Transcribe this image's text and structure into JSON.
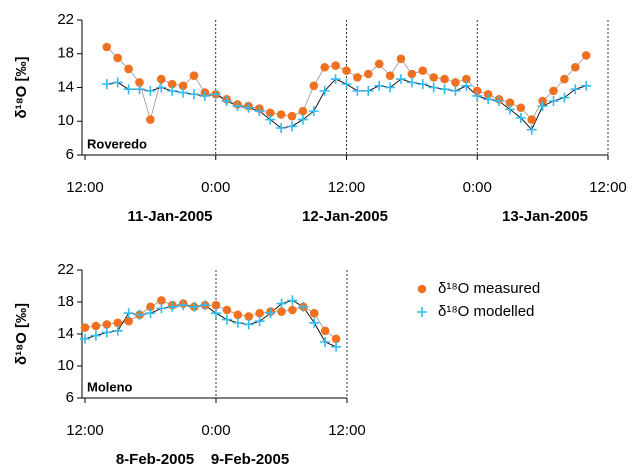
{
  "chart_data": [
    {
      "type": "scatter",
      "label": "Roveredo",
      "y_label": "δ¹⁸O [‰]",
      "date_labels": [
        "11-Jan-2005",
        "12-Jan-2005",
        "13-Jan-2005"
      ],
      "xlim": [
        12,
        60
      ],
      "xticks": [
        {
          "value": 12,
          "label": "12:00"
        },
        {
          "value": 24,
          "label": "0:00"
        },
        {
          "value": 36,
          "label": "12:00"
        },
        {
          "value": 48,
          "label": "0:00"
        },
        {
          "value": 60,
          "label": "12:00"
        }
      ],
      "ylim": [
        6,
        22
      ],
      "yticks": [
        6,
        10,
        14,
        18,
        22
      ],
      "x": [
        14,
        15,
        16,
        17,
        18,
        19,
        20,
        21,
        22,
        23,
        24,
        25,
        26,
        27,
        28,
        29,
        30,
        31,
        32,
        33,
        34,
        35,
        36,
        37,
        38,
        39,
        40,
        41,
        42,
        43,
        44,
        45,
        46,
        47,
        48,
        49,
        50,
        51,
        52,
        53,
        54,
        55,
        56,
        57,
        58
      ],
      "series": [
        {
          "color": "#f07020",
          "values": [
            18.8,
            17.5,
            16.2,
            14.6,
            10.2,
            15.0,
            14.4,
            14.2,
            15.4,
            13.4,
            13.2,
            12.6,
            12.0,
            11.8,
            11.5,
            11.0,
            10.8,
            10.6,
            11.2,
            14.2,
            16.4,
            16.6,
            16.0,
            15.2,
            15.6,
            16.8,
            15.4,
            17.4,
            15.6,
            16.0,
            15.2,
            15.0,
            14.6,
            15.0,
            13.6,
            13.2,
            12.6,
            12.2,
            11.6,
            10.2,
            12.4,
            13.6,
            15.0,
            16.4,
            17.8
          ]
        },
        {
          "color": "#33bbee",
          "values": [
            14.4,
            14.6,
            13.8,
            13.8,
            13.6,
            14.0,
            13.6,
            13.4,
            13.2,
            13.0,
            13.2,
            12.4,
            11.8,
            11.6,
            11.2,
            10.2,
            9.2,
            9.4,
            10.2,
            11.2,
            13.6,
            15.0,
            14.4,
            13.6,
            13.6,
            14.2,
            14.0,
            15.0,
            14.6,
            14.4,
            14.0,
            13.8,
            13.6,
            14.2,
            13.0,
            12.6,
            12.4,
            11.4,
            10.4,
            9.0,
            11.8,
            12.4,
            12.8,
            13.8,
            14.2
          ]
        }
      ]
    },
    {
      "type": "scatter",
      "label": "Moleno",
      "y_label": "δ¹⁸O [‰]",
      "date_labels": [
        "8-Feb-2005",
        "9-Feb-2005"
      ],
      "xlim": [
        12,
        36
      ],
      "xticks": [
        {
          "value": 12,
          "label": "12:00"
        },
        {
          "value": 24,
          "label": "0:00"
        },
        {
          "value": 36,
          "label": "12:00"
        }
      ],
      "ylim": [
        6,
        22
      ],
      "yticks": [
        6,
        10,
        14,
        18,
        22
      ],
      "x": [
        12,
        13,
        14,
        15,
        16,
        17,
        18,
        19,
        20,
        21,
        22,
        23,
        24,
        25,
        26,
        27,
        28,
        29,
        30,
        31,
        32,
        33,
        34,
        35
      ],
      "series": [
        {
          "name": "δ¹⁸O measured",
          "color": "#f07020",
          "values": [
            14.8,
            15.0,
            15.2,
            15.4,
            15.6,
            16.4,
            17.4,
            18.2,
            17.6,
            17.8,
            17.4,
            17.6,
            17.6,
            17.0,
            16.4,
            16.2,
            16.6,
            16.8,
            16.8,
            17.0,
            17.4,
            16.6,
            14.4,
            13.4
          ]
        },
        {
          "name": "δ¹⁸O modelled",
          "color": "#33bbee",
          "values": [
            13.4,
            13.8,
            14.2,
            14.4,
            16.6,
            16.4,
            16.6,
            17.2,
            17.4,
            17.6,
            17.4,
            17.6,
            16.6,
            15.8,
            15.4,
            15.2,
            15.6,
            16.6,
            17.8,
            18.2,
            17.4,
            15.4,
            13.0,
            12.4
          ]
        }
      ]
    }
  ]
}
